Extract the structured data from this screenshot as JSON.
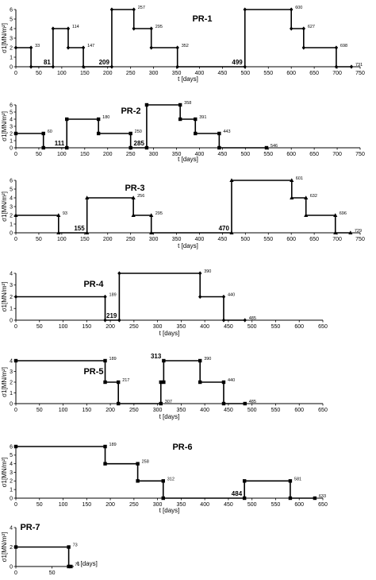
{
  "chart_data": [
    {
      "type": "line",
      "title": "PR-1",
      "marker": "diamond",
      "xlabel": "t [days]",
      "ylabel": "σ1[MN/m²]",
      "xlim": [
        0,
        750
      ],
      "ylim": [
        0,
        6
      ],
      "xticks": [
        0,
        50,
        100,
        150,
        200,
        250,
        300,
        350,
        400,
        450,
        500,
        550,
        600,
        650,
        700,
        750
      ],
      "yticks": [
        0,
        1,
        2,
        3,
        4,
        5,
        6
      ],
      "steps": [
        [
          0,
          2
        ],
        [
          33,
          0
        ],
        [
          81,
          4
        ],
        [
          114,
          2
        ],
        [
          147,
          0
        ],
        [
          209,
          6
        ],
        [
          257,
          4
        ],
        [
          295,
          2
        ],
        [
          352,
          0
        ],
        [
          499,
          6
        ],
        [
          600,
          4
        ],
        [
          627,
          2
        ],
        [
          698,
          0
        ],
        [
          731,
          0
        ]
      ],
      "labels": [
        {
          "x": 33,
          "y": 2,
          "text": "33"
        },
        {
          "x": 81,
          "y": 0,
          "text": "81",
          "bold": true
        },
        {
          "x": 114,
          "y": 4,
          "text": "114"
        },
        {
          "x": 147,
          "y": 2,
          "text": "147"
        },
        {
          "x": 209,
          "y": 0,
          "text": "209",
          "bold": true
        },
        {
          "x": 257,
          "y": 6,
          "text": "257"
        },
        {
          "x": 295,
          "y": 4,
          "text": "295"
        },
        {
          "x": 352,
          "y": 2,
          "text": "352"
        },
        {
          "x": 499,
          "y": 0,
          "text": "499",
          "bold": true
        },
        {
          "x": 600,
          "y": 6,
          "text": "600"
        },
        {
          "x": 627,
          "y": 4,
          "text": "627"
        },
        {
          "x": 698,
          "y": 2,
          "text": "698"
        },
        {
          "x": 731,
          "y": 0,
          "text": "731"
        }
      ]
    },
    {
      "type": "line",
      "title": "PR-2",
      "marker": "square",
      "xlabel": "t [days]",
      "ylabel": "σ1[MN/m²]",
      "xlim": [
        0,
        750
      ],
      "ylim": [
        0,
        6
      ],
      "xticks": [
        0,
        50,
        100,
        150,
        200,
        250,
        300,
        350,
        400,
        450,
        500,
        550,
        600,
        650,
        700,
        750
      ],
      "yticks": [
        0,
        1,
        2,
        3,
        4,
        5,
        6
      ],
      "steps": [
        [
          0,
          2
        ],
        [
          60,
          0
        ],
        [
          111,
          4
        ],
        [
          180,
          2
        ],
        [
          250,
          0
        ],
        [
          285,
          6
        ],
        [
          358,
          4
        ],
        [
          391,
          2
        ],
        [
          443,
          0
        ],
        [
          546,
          0
        ]
      ],
      "labels": [
        {
          "x": 60,
          "y": 2,
          "text": "60"
        },
        {
          "x": 111,
          "y": 0,
          "text": "111",
          "bold": true
        },
        {
          "x": 180,
          "y": 4,
          "text": "180"
        },
        {
          "x": 250,
          "y": 2,
          "text": "250"
        },
        {
          "x": 285,
          "y": 0,
          "text": "285",
          "bold": true
        },
        {
          "x": 358,
          "y": 6,
          "text": "358"
        },
        {
          "x": 391,
          "y": 4,
          "text": "391"
        },
        {
          "x": 443,
          "y": 2,
          "text": "443"
        },
        {
          "x": 546,
          "y": 0,
          "text": "546"
        }
      ]
    },
    {
      "type": "line",
      "title": "PR-3",
      "marker": "triangle",
      "xlabel": "t [days]",
      "ylabel": "σ1[MN/m²]",
      "xlim": [
        0,
        750
      ],
      "ylim": [
        0,
        6
      ],
      "xticks": [
        0,
        50,
        100,
        150,
        200,
        250,
        300,
        350,
        400,
        450,
        500,
        550,
        600,
        650,
        700,
        750
      ],
      "yticks": [
        0,
        1,
        2,
        3,
        4,
        5,
        6
      ],
      "steps": [
        [
          0,
          2
        ],
        [
          93,
          0
        ],
        [
          155,
          4
        ],
        [
          256,
          2
        ],
        [
          295,
          0
        ],
        [
          470,
          6
        ],
        [
          601,
          4
        ],
        [
          632,
          2
        ],
        [
          696,
          0
        ],
        [
          729,
          0
        ]
      ],
      "labels": [
        {
          "x": 93,
          "y": 2,
          "text": "93"
        },
        {
          "x": 155,
          "y": 0,
          "text": "155",
          "bold": true
        },
        {
          "x": 256,
          "y": 4,
          "text": "256"
        },
        {
          "x": 295,
          "y": 2,
          "text": "295"
        },
        {
          "x": 470,
          "y": 0,
          "text": "470",
          "bold": true
        },
        {
          "x": 601,
          "y": 6,
          "text": "601"
        },
        {
          "x": 632,
          "y": 4,
          "text": "632"
        },
        {
          "x": 696,
          "y": 2,
          "text": "696"
        },
        {
          "x": 729,
          "y": 0,
          "text": "729"
        }
      ]
    },
    {
      "type": "line",
      "title": "PR-4",
      "marker": "diamond",
      "xlabel": "t [days]",
      "ylabel": "σ1[MN/m²]",
      "xlim": [
        0,
        650
      ],
      "ylim": [
        0,
        4
      ],
      "xticks": [
        0,
        50,
        100,
        150,
        200,
        250,
        300,
        350,
        400,
        450,
        500,
        550,
        600,
        650
      ],
      "yticks": [
        0,
        1,
        2,
        3,
        4
      ],
      "steps": [
        [
          0,
          2
        ],
        [
          189,
          0
        ],
        [
          219,
          4
        ],
        [
          390,
          2
        ],
        [
          440,
          0
        ],
        [
          485,
          0
        ]
      ],
      "labels": [
        {
          "x": 189,
          "y": 2,
          "text": "189"
        },
        {
          "x": 219,
          "y": 0,
          "text": "219",
          "bold": true
        },
        {
          "x": 390,
          "y": 4,
          "text": "390"
        },
        {
          "x": 440,
          "y": 2,
          "text": "440"
        },
        {
          "x": 485,
          "y": 0,
          "text": "485"
        }
      ]
    },
    {
      "type": "line",
      "title": "PR-5",
      "marker": "square",
      "xlabel": "t [days]",
      "ylabel": "σ1[MN/m²]",
      "xlim": [
        0,
        650
      ],
      "ylim": [
        0,
        4
      ],
      "xticks": [
        0,
        50,
        100,
        150,
        200,
        250,
        300,
        350,
        400,
        450,
        500,
        550,
        600,
        650
      ],
      "yticks": [
        0,
        1,
        2,
        3,
        4
      ],
      "steps": [
        [
          0,
          4
        ],
        [
          189,
          2
        ],
        [
          217,
          0
        ],
        [
          307,
          2
        ],
        [
          313,
          4
        ],
        [
          390,
          2
        ],
        [
          440,
          0
        ],
        [
          485,
          0
        ]
      ],
      "labels": [
        {
          "x": 189,
          "y": 4,
          "text": "189"
        },
        {
          "x": 217,
          "y": 2,
          "text": "217"
        },
        {
          "x": 307,
          "y": 0,
          "text": "307"
        },
        {
          "x": 313,
          "y": 4,
          "text": "313",
          "bold": true
        },
        {
          "x": 390,
          "y": 4,
          "text": "390"
        },
        {
          "x": 440,
          "y": 2,
          "text": "440"
        },
        {
          "x": 485,
          "y": 0,
          "text": "485"
        }
      ]
    },
    {
      "type": "line",
      "title": "PR-6",
      "marker": "square",
      "xlabel": "t [days]",
      "ylabel": "σ1[MN/m²]",
      "xlim": [
        0,
        650
      ],
      "ylim": [
        0,
        6
      ],
      "xticks": [
        0,
        50,
        100,
        150,
        200,
        250,
        300,
        350,
        400,
        450,
        500,
        550,
        600,
        650
      ],
      "yticks": [
        0,
        1,
        2,
        3,
        4,
        5,
        6
      ],
      "steps": [
        [
          0,
          6
        ],
        [
          189,
          4
        ],
        [
          258,
          2
        ],
        [
          312,
          0
        ],
        [
          484,
          2
        ],
        [
          581,
          0
        ],
        [
          633,
          0
        ]
      ],
      "labels": [
        {
          "x": 189,
          "y": 6,
          "text": "189"
        },
        {
          "x": 258,
          "y": 4,
          "text": "258"
        },
        {
          "x": 312,
          "y": 2,
          "text": "312"
        },
        {
          "x": 484,
          "y": 0,
          "text": "484",
          "bold": true
        },
        {
          "x": 581,
          "y": 2,
          "text": "581"
        },
        {
          "x": 633,
          "y": 0,
          "text": "633"
        }
      ]
    },
    {
      "type": "line",
      "title": "PR-7",
      "marker": "square",
      "xlabel": "t [days]",
      "ylabel": "σ1[MN/m²]",
      "xlim": [
        0,
        80
      ],
      "ylim": [
        0,
        4
      ],
      "xticks": [
        0,
        50
      ],
      "yticks": [
        0,
        2,
        4
      ],
      "steps": [
        [
          0,
          2
        ],
        [
          73,
          0
        ],
        [
          76,
          0
        ]
      ],
      "labels": [
        {
          "x": 73,
          "y": 2,
          "text": "73"
        },
        {
          "x": 76,
          "y": 0,
          "text": "76"
        }
      ]
    }
  ]
}
